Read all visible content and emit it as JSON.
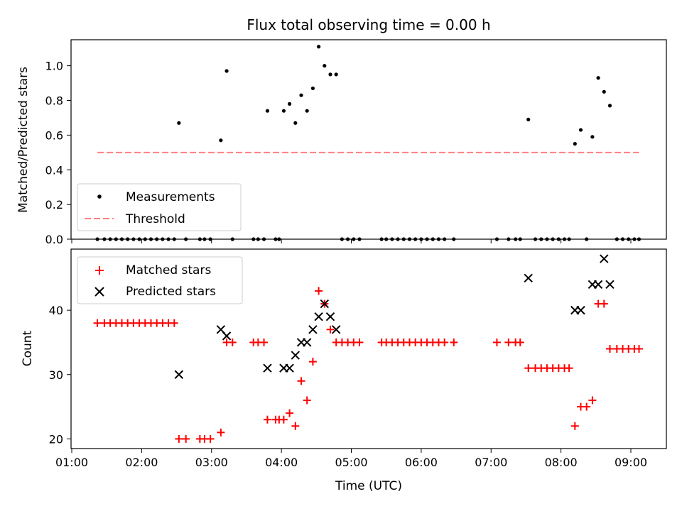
{
  "chart_data": [
    {
      "type": "scatter",
      "title": "Flux total observing time = 0.00 h",
      "xlabel": "",
      "ylabel": "Matched/Predicted stars",
      "ylim": [
        0,
        1.15
      ],
      "xlim": [
        "01:00",
        "09:30"
      ],
      "yticks": [
        "0.0",
        "0.2",
        "0.4",
        "0.6",
        "0.8",
        "1.0"
      ],
      "legend_position": "lower-left",
      "grid": false,
      "series": [
        {
          "name": "Measurements",
          "marker": "dot",
          "color": "#000000",
          "points": [
            {
              "x": "01:22",
              "y": 0
            },
            {
              "x": "01:28",
              "y": 0
            },
            {
              "x": "01:33",
              "y": 0
            },
            {
              "x": "01:38",
              "y": 0
            },
            {
              "x": "01:43",
              "y": 0
            },
            {
              "x": "01:48",
              "y": 0
            },
            {
              "x": "01:53",
              "y": 0
            },
            {
              "x": "01:58",
              "y": 0
            },
            {
              "x": "02:03",
              "y": 0
            },
            {
              "x": "02:08",
              "y": 0
            },
            {
              "x": "02:13",
              "y": 0
            },
            {
              "x": "02:18",
              "y": 0
            },
            {
              "x": "02:23",
              "y": 0
            },
            {
              "x": "02:28",
              "y": 0
            },
            {
              "x": "02:32",
              "y": 0.67
            },
            {
              "x": "02:38",
              "y": 0
            },
            {
              "x": "02:50",
              "y": 0
            },
            {
              "x": "02:54",
              "y": 0
            },
            {
              "x": "02:59",
              "y": 0
            },
            {
              "x": "03:08",
              "y": 0.57
            },
            {
              "x": "03:13",
              "y": 0.97
            },
            {
              "x": "03:18",
              "y": 0
            },
            {
              "x": "03:36",
              "y": 0
            },
            {
              "x": "03:40",
              "y": 0
            },
            {
              "x": "03:45",
              "y": 0
            },
            {
              "x": "03:48",
              "y": 0.74
            },
            {
              "x": "03:55",
              "y": 0
            },
            {
              "x": "03:58",
              "y": 0
            },
            {
              "x": "04:02",
              "y": 0.74
            },
            {
              "x": "04:07",
              "y": 0.78
            },
            {
              "x": "04:12",
              "y": 0.67
            },
            {
              "x": "04:17",
              "y": 0.83
            },
            {
              "x": "04:22",
              "y": 0.74
            },
            {
              "x": "04:27",
              "y": 0.87
            },
            {
              "x": "04:32",
              "y": 1.11
            },
            {
              "x": "04:37",
              "y": 1.0
            },
            {
              "x": "04:42",
              "y": 0.95
            },
            {
              "x": "04:47",
              "y": 0.95
            },
            {
              "x": "04:52",
              "y": 0
            },
            {
              "x": "04:57",
              "y": 0
            },
            {
              "x": "05:02",
              "y": 0
            },
            {
              "x": "05:07",
              "y": 0
            },
            {
              "x": "05:26",
              "y": 0
            },
            {
              "x": "05:30",
              "y": 0
            },
            {
              "x": "05:35",
              "y": 0
            },
            {
              "x": "05:40",
              "y": 0
            },
            {
              "x": "05:45",
              "y": 0
            },
            {
              "x": "05:50",
              "y": 0
            },
            {
              "x": "05:55",
              "y": 0
            },
            {
              "x": "06:00",
              "y": 0
            },
            {
              "x": "06:05",
              "y": 0
            },
            {
              "x": "06:10",
              "y": 0
            },
            {
              "x": "06:15",
              "y": 0
            },
            {
              "x": "06:20",
              "y": 0
            },
            {
              "x": "06:28",
              "y": 0
            },
            {
              "x": "07:05",
              "y": 0
            },
            {
              "x": "07:15",
              "y": 0
            },
            {
              "x": "07:21",
              "y": 0
            },
            {
              "x": "07:25",
              "y": 0
            },
            {
              "x": "07:32",
              "y": 0.69
            },
            {
              "x": "07:38",
              "y": 0
            },
            {
              "x": "07:43",
              "y": 0
            },
            {
              "x": "07:48",
              "y": 0
            },
            {
              "x": "07:53",
              "y": 0
            },
            {
              "x": "07:58",
              "y": 0
            },
            {
              "x": "08:03",
              "y": 0
            },
            {
              "x": "08:07",
              "y": 0
            },
            {
              "x": "08:12",
              "y": 0.55
            },
            {
              "x": "08:17",
              "y": 0.63
            },
            {
              "x": "08:22",
              "y": 0
            },
            {
              "x": "08:27",
              "y": 0.59
            },
            {
              "x": "08:32",
              "y": 0.93
            },
            {
              "x": "08:37",
              "y": 0.85
            },
            {
              "x": "08:42",
              "y": 0.77
            },
            {
              "x": "08:48",
              "y": 0
            },
            {
              "x": "08:53",
              "y": 0
            },
            {
              "x": "08:58",
              "y": 0
            },
            {
              "x": "09:03",
              "y": 0
            },
            {
              "x": "09:07",
              "y": 0
            }
          ]
        },
        {
          "name": "Threshold",
          "type": "line",
          "style": "dashed",
          "color": "#ff7f7f",
          "points": [
            {
              "x": "01:22",
              "y": 0.5
            },
            {
              "x": "09:07",
              "y": 0.5
            }
          ]
        }
      ]
    },
    {
      "type": "scatter",
      "title": "",
      "xlabel": "Time (UTC)",
      "ylabel": "Count",
      "ylim": [
        18.5,
        49.5
      ],
      "xlim": [
        "01:00",
        "09:30"
      ],
      "xticks": [
        "01:00",
        "02:00",
        "03:00",
        "04:00",
        "05:00",
        "06:00",
        "07:00",
        "08:00",
        "09:00"
      ],
      "yticks": [
        "20",
        "30",
        "40"
      ],
      "legend_position": "top-left",
      "grid": false,
      "series": [
        {
          "name": "Matched stars",
          "marker": "plus",
          "color": "#ff0000",
          "points": [
            {
              "x": "01:22",
              "y": 38
            },
            {
              "x": "01:28",
              "y": 38
            },
            {
              "x": "01:33",
              "y": 38
            },
            {
              "x": "01:38",
              "y": 38
            },
            {
              "x": "01:43",
              "y": 38
            },
            {
              "x": "01:48",
              "y": 38
            },
            {
              "x": "01:53",
              "y": 38
            },
            {
              "x": "01:58",
              "y": 38
            },
            {
              "x": "02:03",
              "y": 38
            },
            {
              "x": "02:08",
              "y": 38
            },
            {
              "x": "02:13",
              "y": 38
            },
            {
              "x": "02:18",
              "y": 38
            },
            {
              "x": "02:23",
              "y": 38
            },
            {
              "x": "02:28",
              "y": 38
            },
            {
              "x": "02:32",
              "y": 20
            },
            {
              "x": "02:38",
              "y": 20
            },
            {
              "x": "02:50",
              "y": 20
            },
            {
              "x": "02:54",
              "y": 20
            },
            {
              "x": "02:59",
              "y": 20
            },
            {
              "x": "03:08",
              "y": 21
            },
            {
              "x": "03:13",
              "y": 35
            },
            {
              "x": "03:18",
              "y": 35
            },
            {
              "x": "03:36",
              "y": 35
            },
            {
              "x": "03:40",
              "y": 35
            },
            {
              "x": "03:45",
              "y": 35
            },
            {
              "x": "03:48",
              "y": 23
            },
            {
              "x": "03:55",
              "y": 23
            },
            {
              "x": "03:58",
              "y": 23
            },
            {
              "x": "04:02",
              "y": 23
            },
            {
              "x": "04:07",
              "y": 24
            },
            {
              "x": "04:12",
              "y": 22
            },
            {
              "x": "04:17",
              "y": 29
            },
            {
              "x": "04:22",
              "y": 26
            },
            {
              "x": "04:27",
              "y": 32
            },
            {
              "x": "04:32",
              "y": 43
            },
            {
              "x": "04:37",
              "y": 41
            },
            {
              "x": "04:42",
              "y": 37
            },
            {
              "x": "04:47",
              "y": 35
            },
            {
              "x": "04:52",
              "y": 35
            },
            {
              "x": "04:57",
              "y": 35
            },
            {
              "x": "05:02",
              "y": 35
            },
            {
              "x": "05:07",
              "y": 35
            },
            {
              "x": "05:26",
              "y": 35
            },
            {
              "x": "05:30",
              "y": 35
            },
            {
              "x": "05:35",
              "y": 35
            },
            {
              "x": "05:40",
              "y": 35
            },
            {
              "x": "05:45",
              "y": 35
            },
            {
              "x": "05:50",
              "y": 35
            },
            {
              "x": "05:55",
              "y": 35
            },
            {
              "x": "06:00",
              "y": 35
            },
            {
              "x": "06:05",
              "y": 35
            },
            {
              "x": "06:10",
              "y": 35
            },
            {
              "x": "06:15",
              "y": 35
            },
            {
              "x": "06:20",
              "y": 35
            },
            {
              "x": "06:28",
              "y": 35
            },
            {
              "x": "07:05",
              "y": 35
            },
            {
              "x": "07:15",
              "y": 35
            },
            {
              "x": "07:21",
              "y": 35
            },
            {
              "x": "07:25",
              "y": 35
            },
            {
              "x": "07:32",
              "y": 31
            },
            {
              "x": "07:38",
              "y": 31
            },
            {
              "x": "07:43",
              "y": 31
            },
            {
              "x": "07:48",
              "y": 31
            },
            {
              "x": "07:53",
              "y": 31
            },
            {
              "x": "07:58",
              "y": 31
            },
            {
              "x": "08:03",
              "y": 31
            },
            {
              "x": "08:07",
              "y": 31
            },
            {
              "x": "08:12",
              "y": 22
            },
            {
              "x": "08:17",
              "y": 25
            },
            {
              "x": "08:22",
              "y": 25
            },
            {
              "x": "08:27",
              "y": 26
            },
            {
              "x": "08:32",
              "y": 41
            },
            {
              "x": "08:37",
              "y": 41
            },
            {
              "x": "08:42",
              "y": 34
            },
            {
              "x": "08:48",
              "y": 34
            },
            {
              "x": "08:53",
              "y": 34
            },
            {
              "x": "08:58",
              "y": 34
            },
            {
              "x": "09:03",
              "y": 34
            },
            {
              "x": "09:07",
              "y": 34
            }
          ]
        },
        {
          "name": "Predicted stars",
          "marker": "x",
          "color": "#000000",
          "points": [
            {
              "x": "02:32",
              "y": 30
            },
            {
              "x": "03:08",
              "y": 37
            },
            {
              "x": "03:13",
              "y": 36
            },
            {
              "x": "03:48",
              "y": 31
            },
            {
              "x": "04:02",
              "y": 31
            },
            {
              "x": "04:07",
              "y": 31
            },
            {
              "x": "04:12",
              "y": 33
            },
            {
              "x": "04:17",
              "y": 35
            },
            {
              "x": "04:22",
              "y": 35
            },
            {
              "x": "04:27",
              "y": 37
            },
            {
              "x": "04:32",
              "y": 39
            },
            {
              "x": "04:37",
              "y": 41
            },
            {
              "x": "04:42",
              "y": 39
            },
            {
              "x": "04:47",
              "y": 37
            },
            {
              "x": "07:32",
              "y": 45
            },
            {
              "x": "08:12",
              "y": 40
            },
            {
              "x": "08:17",
              "y": 40
            },
            {
              "x": "08:27",
              "y": 44
            },
            {
              "x": "08:32",
              "y": 44
            },
            {
              "x": "08:37",
              "y": 48
            },
            {
              "x": "08:42",
              "y": 44
            }
          ]
        }
      ]
    }
  ]
}
